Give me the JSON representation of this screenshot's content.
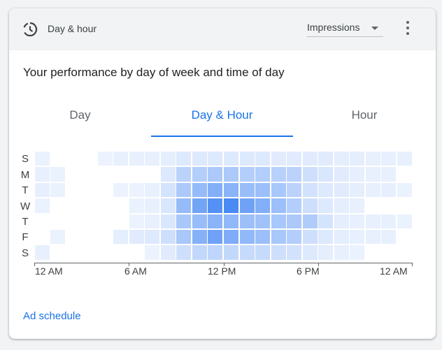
{
  "header": {
    "title": "Day & hour",
    "metric_select": "Impressions"
  },
  "subtitle": "Your performance by day of week and time of day",
  "tabs": [
    {
      "label": "Day",
      "active": false
    },
    {
      "label": "Day & Hour",
      "active": true
    },
    {
      "label": "Hour",
      "active": false
    }
  ],
  "colors": {
    "accent": "#1a73e8",
    "heat_base": "#4285f4"
  },
  "chart_data": {
    "type": "heatmap",
    "y_labels": [
      "S",
      "M",
      "T",
      "W",
      "T",
      "F",
      "S"
    ],
    "x_tick_labels": [
      "12 AM",
      "6 AM",
      "12 PM",
      "6 PM",
      "12 AM"
    ],
    "x_tick_hours": [
      0,
      6,
      12,
      18,
      24
    ],
    "hours": 24,
    "values": [
      [
        0.05,
        0.0,
        0.0,
        0.0,
        0.04,
        0.06,
        0.06,
        0.06,
        0.08,
        0.12,
        0.12,
        0.12,
        0.12,
        0.12,
        0.12,
        0.1,
        0.1,
        0.1,
        0.1,
        0.08,
        0.08,
        0.06,
        0.06,
        0.06
      ],
      [
        0.06,
        0.05,
        0.0,
        0.0,
        0.0,
        0.0,
        0.0,
        0.0,
        0.12,
        0.3,
        0.34,
        0.38,
        0.38,
        0.34,
        0.34,
        0.32,
        0.3,
        0.2,
        0.14,
        0.1,
        0.07,
        0.06,
        0.06,
        0.0
      ],
      [
        0.07,
        0.05,
        0.0,
        0.0,
        0.0,
        0.04,
        0.04,
        0.06,
        0.16,
        0.38,
        0.5,
        0.6,
        0.56,
        0.48,
        0.46,
        0.4,
        0.3,
        0.18,
        0.12,
        0.1,
        0.08,
        0.06,
        0.07,
        0.05
      ],
      [
        0.05,
        0.0,
        0.0,
        0.0,
        0.0,
        0.0,
        0.05,
        0.06,
        0.14,
        0.5,
        0.68,
        0.84,
        0.9,
        0.7,
        0.6,
        0.46,
        0.34,
        0.2,
        0.12,
        0.08,
        0.06,
        0.0,
        0.0,
        0.0
      ],
      [
        0.0,
        0.0,
        0.0,
        0.0,
        0.0,
        0.0,
        0.04,
        0.06,
        0.14,
        0.4,
        0.48,
        0.56,
        0.52,
        0.46,
        0.44,
        0.4,
        0.38,
        0.36,
        0.16,
        0.08,
        0.06,
        0.06,
        0.06,
        0.05
      ],
      [
        0.0,
        0.05,
        0.0,
        0.0,
        0.0,
        0.08,
        0.1,
        0.12,
        0.2,
        0.4,
        0.58,
        0.7,
        0.62,
        0.52,
        0.46,
        0.4,
        0.34,
        0.2,
        0.12,
        0.08,
        0.06,
        0.06,
        0.06,
        0.0
      ],
      [
        0.06,
        0.0,
        0.0,
        0.0,
        0.0,
        0.0,
        0.0,
        0.04,
        0.1,
        0.2,
        0.26,
        0.28,
        0.26,
        0.24,
        0.24,
        0.2,
        0.18,
        0.12,
        0.08,
        0.06,
        0.05,
        0.0,
        0.0,
        0.0
      ]
    ]
  },
  "footer": {
    "link": "Ad schedule"
  }
}
